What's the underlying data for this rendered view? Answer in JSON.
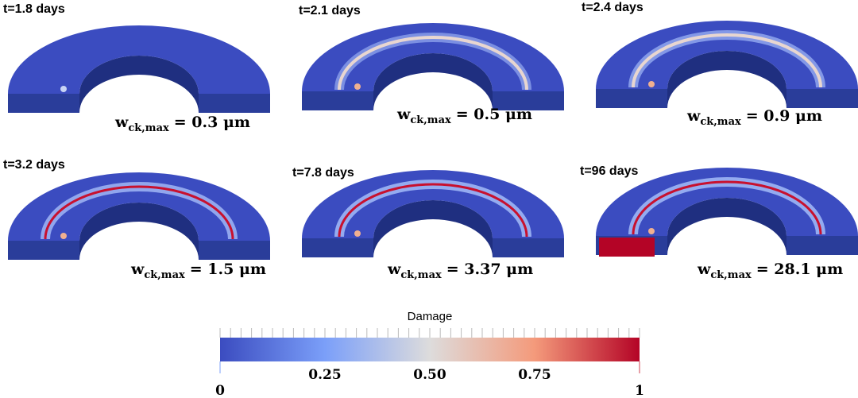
{
  "panels": [
    {
      "time": "t=1.8 days",
      "width": "= 0.3 μm"
    },
    {
      "time": "t=2.1 days",
      "width": "= 0.5 μm"
    },
    {
      "time": "t=2.4 days",
      "width": "= 0.9 μm"
    },
    {
      "time": "t=3.2 days",
      "width": "= 1.5 μm"
    },
    {
      "time": "t=7.8 days",
      "width": "= 3.37 μm"
    },
    {
      "time": "t=96 days",
      "width": "= 28.1 μm"
    }
  ],
  "symbol": "w",
  "subscript": "ck,max",
  "colorbar": {
    "title": "Damage",
    "range": [
      0,
      1
    ],
    "ticks": [
      0,
      0.25,
      {
        "value": 0.5,
        "label": "0.50"
      },
      0.75,
      1
    ]
  }
}
